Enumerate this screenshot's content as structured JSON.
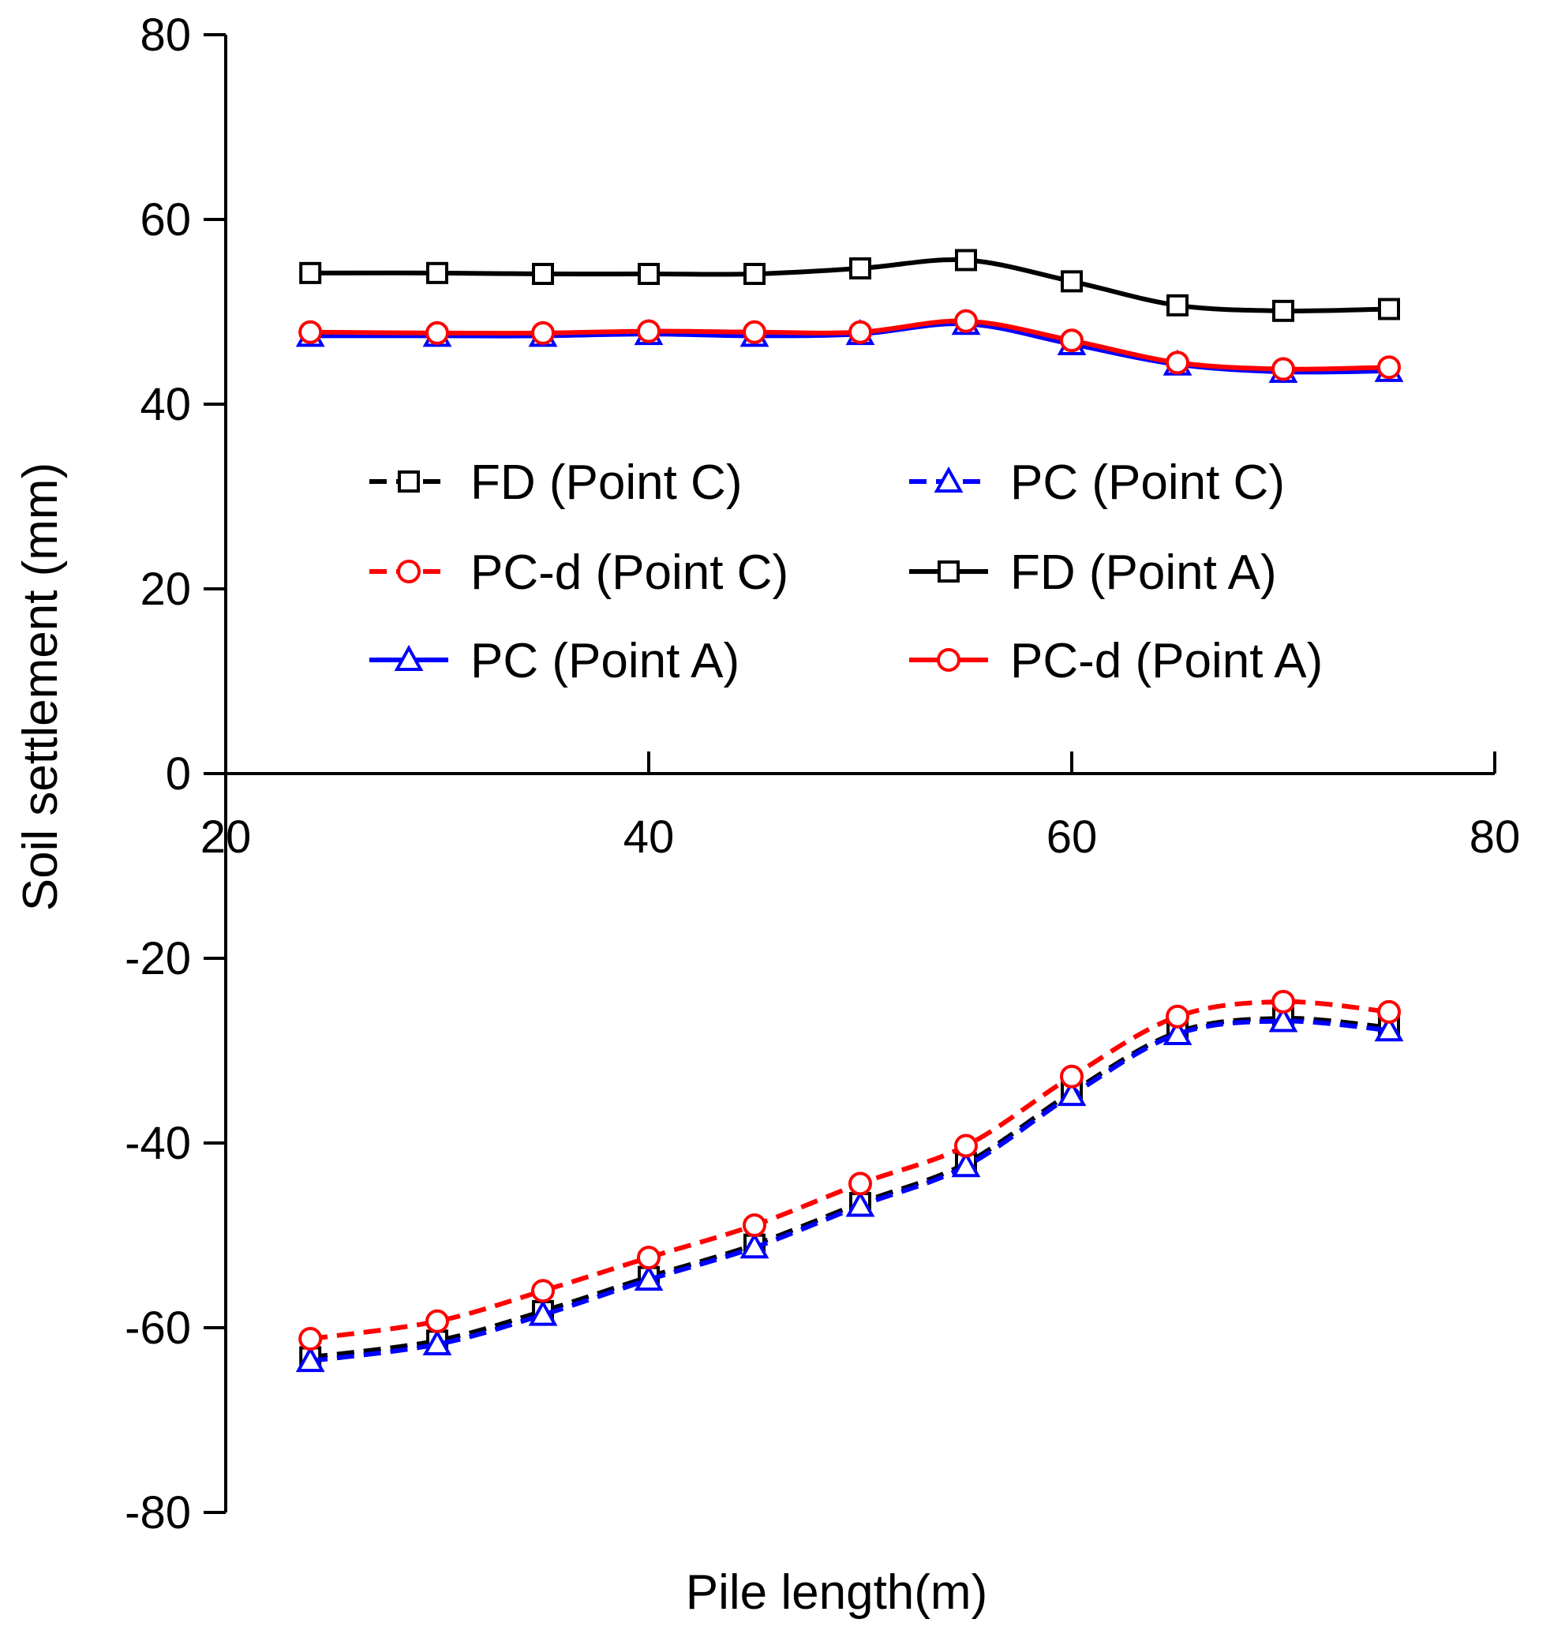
{
  "chart_data": {
    "type": "line",
    "title": "",
    "xlabel": "Pile length(m)",
    "ylabel": "Soil settlement (mm)",
    "xlim": [
      20,
      80
    ],
    "ylim": [
      -80,
      80
    ],
    "x_ticks": [
      20,
      40,
      60,
      80
    ],
    "y_ticks": [
      80,
      60,
      40,
      20,
      0,
      -20,
      -40,
      -60,
      -80
    ],
    "grid": false,
    "legend_position": "middle",
    "x": [
      24,
      30,
      35,
      40,
      45,
      50,
      55,
      60,
      65,
      70,
      75
    ],
    "series": [
      {
        "name": "FD (Point C)",
        "color": "#000000",
        "style": "dashed",
        "marker": "square",
        "values": [
          -63.2,
          -61.4,
          -58.2,
          -54.5,
          -51.0,
          -46.5,
          -42.2,
          -34.5,
          -28.0,
          -26.5,
          -27.5
        ]
      },
      {
        "name": "PC (Point C)",
        "color": "#0000ff",
        "style": "dashed",
        "marker": "triangle",
        "values": [
          -63.6,
          -61.8,
          -58.6,
          -54.8,
          -51.3,
          -46.8,
          -42.5,
          -34.8,
          -28.2,
          -26.8,
          -27.8
        ]
      },
      {
        "name": "PC-d (Point C)",
        "color": "#ff0000",
        "style": "dashed",
        "marker": "circle",
        "values": [
          -61.2,
          -59.3,
          -56.0,
          -52.4,
          -48.9,
          -44.4,
          -40.3,
          -32.8,
          -26.3,
          -24.7,
          -25.8
        ]
      },
      {
        "name": "FD (Point A)",
        "color": "#000000",
        "style": "solid",
        "marker": "square",
        "values": [
          54.2,
          54.2,
          54.1,
          54.1,
          54.1,
          54.7,
          55.6,
          53.3,
          50.7,
          50.1,
          50.3
        ]
      },
      {
        "name": "PC (Point A)",
        "color": "#0000ff",
        "style": "solid",
        "marker": "triangle",
        "values": [
          47.4,
          47.4,
          47.4,
          47.6,
          47.4,
          47.6,
          48.7,
          46.5,
          44.3,
          43.5,
          43.6
        ]
      },
      {
        "name": "PC-d (Point A)",
        "color": "#ff0000",
        "style": "solid",
        "marker": "circle",
        "values": [
          47.8,
          47.7,
          47.7,
          47.9,
          47.8,
          47.8,
          49.0,
          46.9,
          44.5,
          43.8,
          44.0
        ]
      }
    ]
  }
}
